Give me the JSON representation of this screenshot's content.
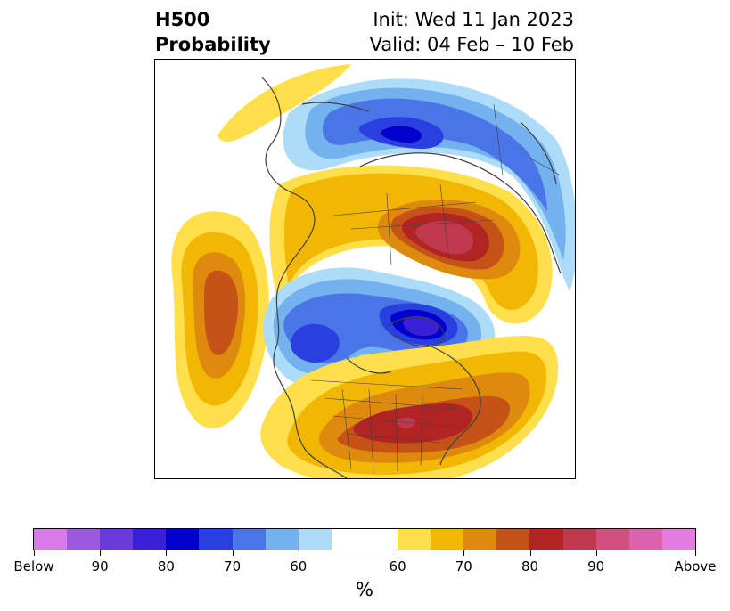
{
  "title": {
    "left_line1": "H500",
    "left_line2": "Probability",
    "right_line1": "Init: Wed 11 Jan 2023",
    "right_line2": "Valid: 04 Feb – 10 Feb"
  },
  "colorbar": {
    "unit": "%",
    "colors": [
      "#d57ae6",
      "#9b59e0",
      "#6a3bd8",
      "#3a1fd4",
      "#0000cc",
      "#2a3fe0",
      "#4a75e6",
      "#74b1ef",
      "#acdcf8",
      "#ffffff",
      "#ffe04a",
      "#f2b705",
      "#de8a0e",
      "#c55318",
      "#b02424",
      "#c0384e",
      "#d15080",
      "#dc62b0",
      "#e47be0"
    ],
    "tick_labels": [
      "Below",
      "90",
      "80",
      "70",
      "60",
      "60",
      "70",
      "80",
      "90",
      "Above"
    ]
  },
  "map": {
    "projection": "polar stereographic",
    "features": [
      "anomaly probability shading",
      "coastlines",
      "country borders",
      "US state borders"
    ]
  }
}
